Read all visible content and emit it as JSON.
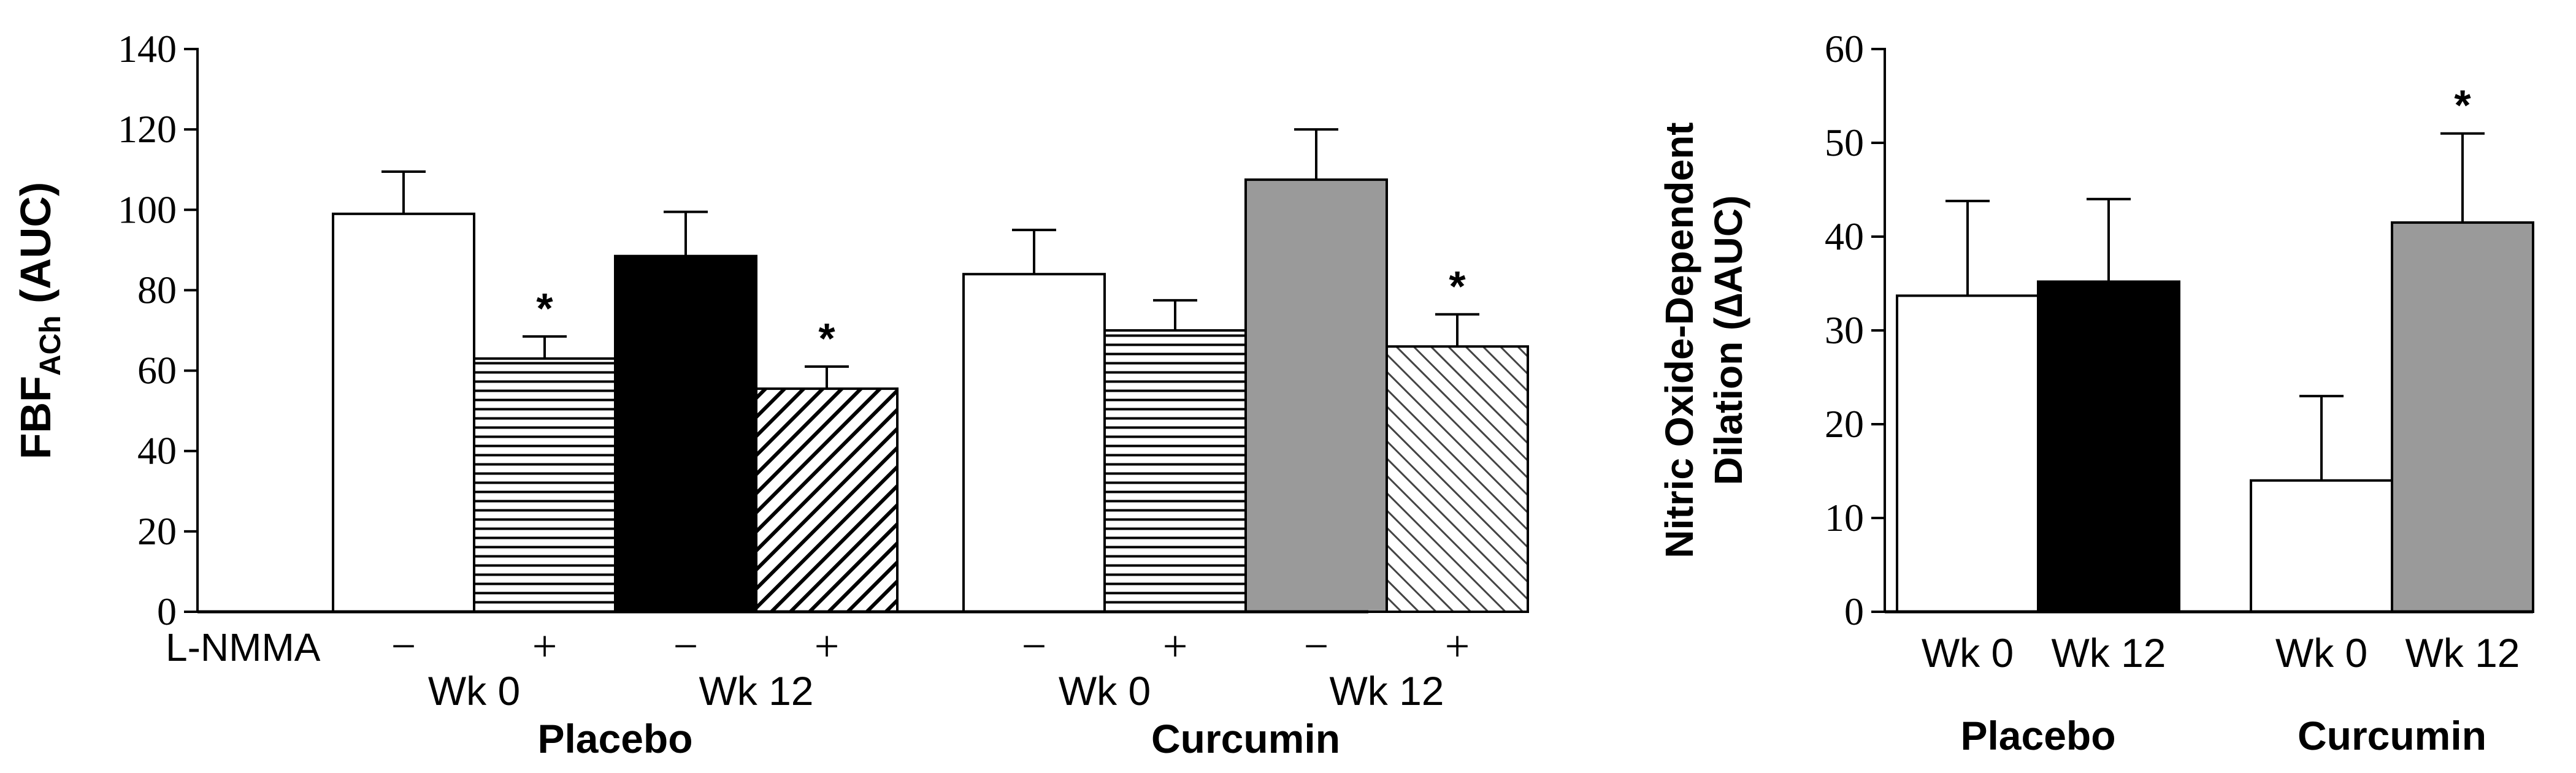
{
  "chart_data": [
    {
      "type": "bar",
      "ylabel_main": "FBF",
      "ylabel_sub": "ACh",
      "ylabel_suffix": " (AUC)",
      "ylim": [
        0,
        140
      ],
      "yticks": [
        "0",
        "20",
        "40",
        "60",
        "80",
        "100",
        "120",
        "140"
      ],
      "lnmma_label": "L-NMMA",
      "bars": [
        {
          "group": "Placebo",
          "week": "Wk 0",
          "lnmma": "−",
          "value": 99,
          "error": 10.5,
          "fill": "white",
          "star": ""
        },
        {
          "group": "Placebo",
          "week": "Wk 0",
          "lnmma": "+",
          "value": 63,
          "error": 5.5,
          "fill": "hlines",
          "star": "*"
        },
        {
          "group": "Placebo",
          "week": "Wk 12",
          "lnmma": "−",
          "value": 88.5,
          "error": 11,
          "fill": "black",
          "star": ""
        },
        {
          "group": "Placebo",
          "week": "Wk 12",
          "lnmma": "+",
          "value": 55.5,
          "error": 5.5,
          "fill": "diag",
          "star": "*"
        },
        {
          "group": "Curcumin",
          "week": "Wk 0",
          "lnmma": "−",
          "value": 84,
          "error": 11,
          "fill": "white",
          "star": ""
        },
        {
          "group": "Curcumin",
          "week": "Wk 0",
          "lnmma": "+",
          "value": 70,
          "error": 7.5,
          "fill": "hlines",
          "star": ""
        },
        {
          "group": "Curcumin",
          "week": "Wk 12",
          "lnmma": "−",
          "value": 107.5,
          "error": 12.5,
          "fill": "gray",
          "star": ""
        },
        {
          "group": "Curcumin",
          "week": "Wk 12",
          "lnmma": "+",
          "value": 66,
          "error": 8,
          "fill": "diagthin",
          "star": "*"
        }
      ],
      "week_labels": [
        "Wk 0",
        "Wk 12",
        "Wk 0",
        "Wk 12"
      ],
      "group_labels": [
        "Placebo",
        "Curcumin"
      ]
    },
    {
      "type": "bar",
      "ylabel_line1": "Nitric Oxide-Dependent",
      "ylabel_line2": "Dilation (∆AUC)",
      "ylim": [
        0,
        60
      ],
      "yticks": [
        "0",
        "10",
        "20",
        "30",
        "40",
        "50",
        "60"
      ],
      "bars": [
        {
          "group": "Placebo",
          "week": "Wk 0",
          "value": 33.7,
          "error": 10.1,
          "fill": "white",
          "star": ""
        },
        {
          "group": "Placebo",
          "week": "Wk 12",
          "value": 35.2,
          "error": 8.8,
          "fill": "black",
          "star": ""
        },
        {
          "group": "Curcumin",
          "week": "Wk 0",
          "value": 14,
          "error": 9,
          "fill": "white",
          "star": ""
        },
        {
          "group": "Curcumin",
          "week": "Wk 12",
          "value": 41.5,
          "error": 9.5,
          "fill": "gray",
          "star": "*"
        }
      ],
      "group_labels": [
        "Placebo",
        "Curcumin"
      ]
    }
  ],
  "colors": {
    "black": "#000000",
    "gray": "#9a9a9a",
    "white": "#ffffff"
  }
}
